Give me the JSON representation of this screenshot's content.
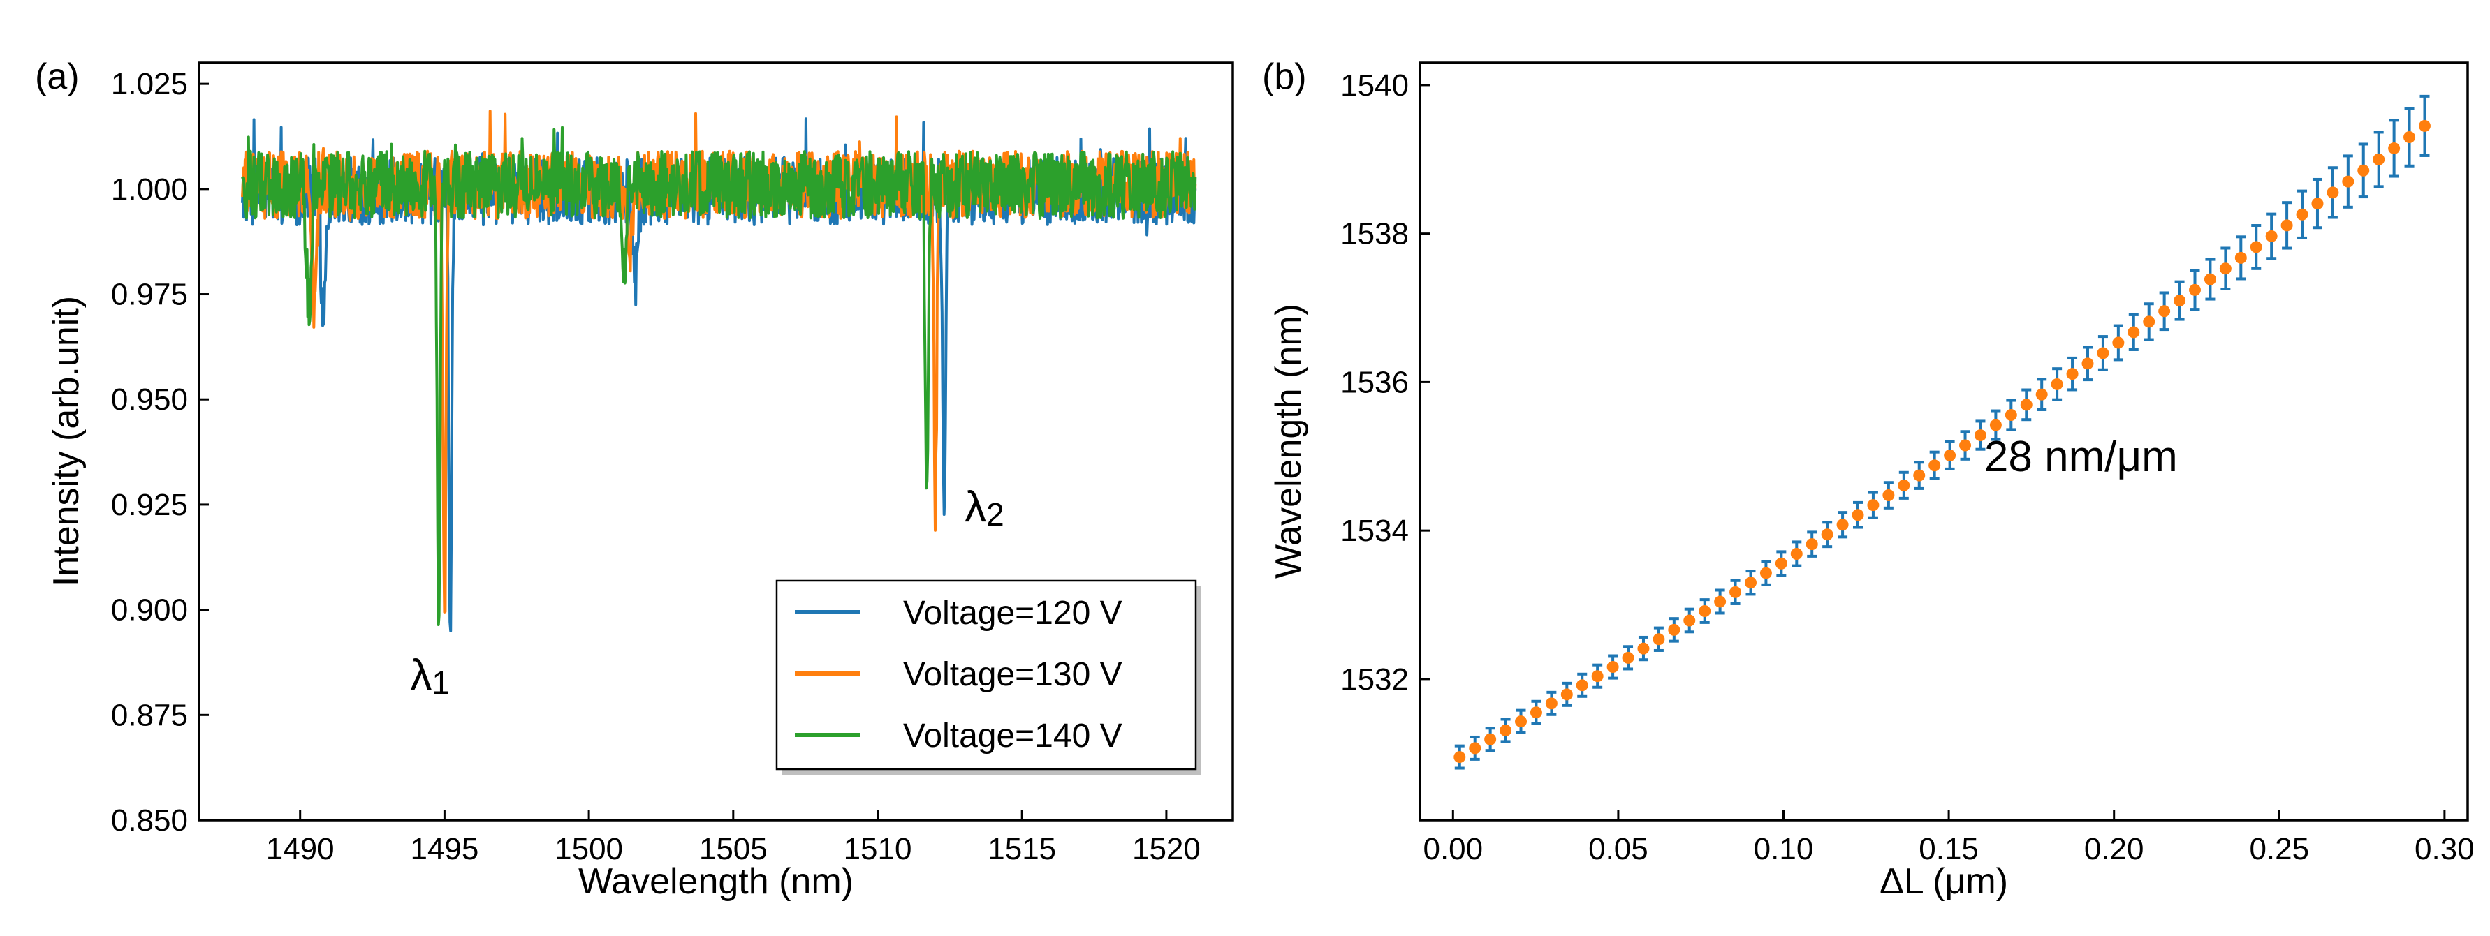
{
  "chart_data": [
    {
      "panel_label": "(a)",
      "type": "line",
      "xlabel": "Wavelength (nm)",
      "ylabel": "Intensity (arb.unit)",
      "xlim": [
        1486.5,
        1522.3
      ],
      "ylim": [
        0.85,
        1.03
      ],
      "x_ticks": [
        1490,
        1495,
        1500,
        1505,
        1510,
        1515,
        1520
      ],
      "y_ticks": [
        0.85,
        0.875,
        0.9,
        0.925,
        0.95,
        0.975,
        1.0,
        1.025
      ],
      "y_tick_labels": [
        "0.850",
        "0.875",
        "0.900",
        "0.925",
        "0.950",
        "0.975",
        "1.000",
        "1.025"
      ],
      "x_range": [
        1488,
        1521
      ],
      "legend_position": "lower-right",
      "series": [
        {
          "name": "Voltage=120 V",
          "color": "#1f77b4",
          "baseline": 0.9995,
          "dips": [
            {
              "x": 1495.2,
              "y": 0.892
            },
            {
              "x": 1512.3,
              "y": 0.919
            },
            {
              "x": 1490.8,
              "y": 0.972
            },
            {
              "x": 1501.6,
              "y": 0.979
            }
          ]
        },
        {
          "name": "Voltage=130 V",
          "color": "#ff7f0e",
          "baseline": 1.001,
          "dips": [
            {
              "x": 1495.0,
              "y": 0.895
            },
            {
              "x": 1512.0,
              "y": 0.924
            },
            {
              "x": 1490.5,
              "y": 0.973
            },
            {
              "x": 1501.4,
              "y": 0.978
            }
          ]
        },
        {
          "name": "Voltage=140 V",
          "color": "#2ca02c",
          "baseline": 1.001,
          "dips": [
            {
              "x": 1494.8,
              "y": 0.892
            },
            {
              "x": 1511.7,
              "y": 0.927
            },
            {
              "x": 1490.3,
              "y": 0.974
            },
            {
              "x": 1501.2,
              "y": 0.979
            }
          ]
        }
      ],
      "annotations": [
        {
          "text": "λ1",
          "x": 1494.5,
          "y": 0.881
        },
        {
          "text": "λ2",
          "x": 1513.7,
          "y": 0.921
        }
      ]
    },
    {
      "panel_label": "(b)",
      "type": "scatter",
      "xlabel": "ΔL (μm)",
      "ylabel": "Wavelength (nm)",
      "xlim": [
        -0.01,
        0.307
      ],
      "ylim": [
        1530.1,
        1540.3
      ],
      "x_ticks": [
        0.0,
        0.05,
        0.1,
        0.15,
        0.2,
        0.25,
        0.3
      ],
      "x_tick_labels": [
        "0.00",
        "0.05",
        "0.10",
        "0.15",
        "0.20",
        "0.25",
        "0.30"
      ],
      "y_ticks": [
        1532,
        1534,
        1536,
        1538,
        1540
      ],
      "marker_color": "#ff7f0e",
      "errorbar_color": "#1f77b4",
      "x_start": 0.002,
      "x_end": 0.294,
      "points": 64,
      "y_start": 1530.95,
      "y_end": 1539.45,
      "error_start": 0.15,
      "error_end": 0.4,
      "annotations": [
        {
          "text": "28 nm/μm",
          "x": 0.19,
          "y": 1534.8
        }
      ]
    }
  ]
}
